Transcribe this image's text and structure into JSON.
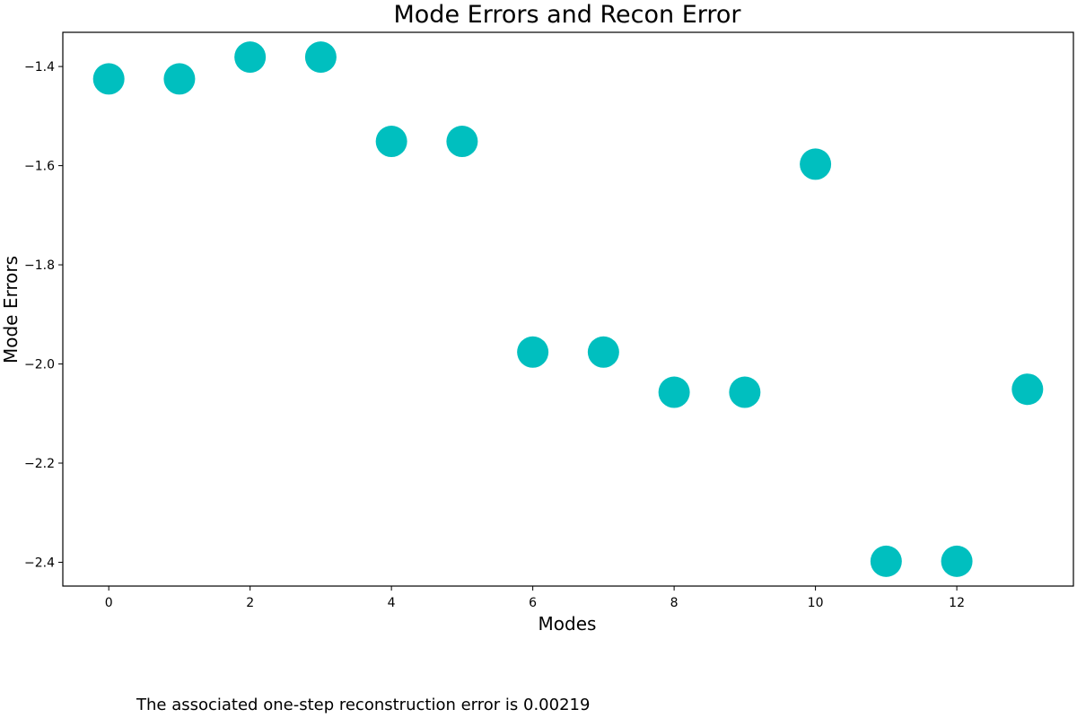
{
  "chart_data": {
    "type": "scatter",
    "title": "Mode Errors and Recon Error",
    "xlabel": "Modes",
    "ylabel": "Mode Errors",
    "x": [
      0,
      1,
      2,
      3,
      4,
      5,
      6,
      7,
      8,
      9,
      10,
      11,
      12,
      13
    ],
    "series": [
      {
        "values": [
          -1.425,
          -1.425,
          -1.381,
          -1.381,
          -1.551,
          -1.551,
          -1.976,
          -1.976,
          -2.057,
          -2.057,
          -1.597,
          -2.398,
          -2.398,
          -2.051
        ],
        "color": "#00bfbf"
      }
    ],
    "xlim": [
      -0.65,
      13.65
    ],
    "ylim": [
      -2.448,
      -1.331
    ],
    "xticks": [
      0,
      2,
      4,
      6,
      8,
      10,
      12
    ],
    "xtick_labels": [
      "0",
      "2",
      "4",
      "6",
      "8",
      "10",
      "12"
    ],
    "yticks": [
      -1.4,
      -1.6,
      -1.8,
      -2.0,
      -2.2,
      -2.4
    ],
    "ytick_labels": [
      "−1.4",
      "−1.6",
      "−1.8",
      "−2.0",
      "−2.2",
      "−2.4"
    ],
    "grid": false,
    "legend": "none"
  },
  "footer": {
    "note": "The associated one-step reconstruction error is 0.00219"
  }
}
